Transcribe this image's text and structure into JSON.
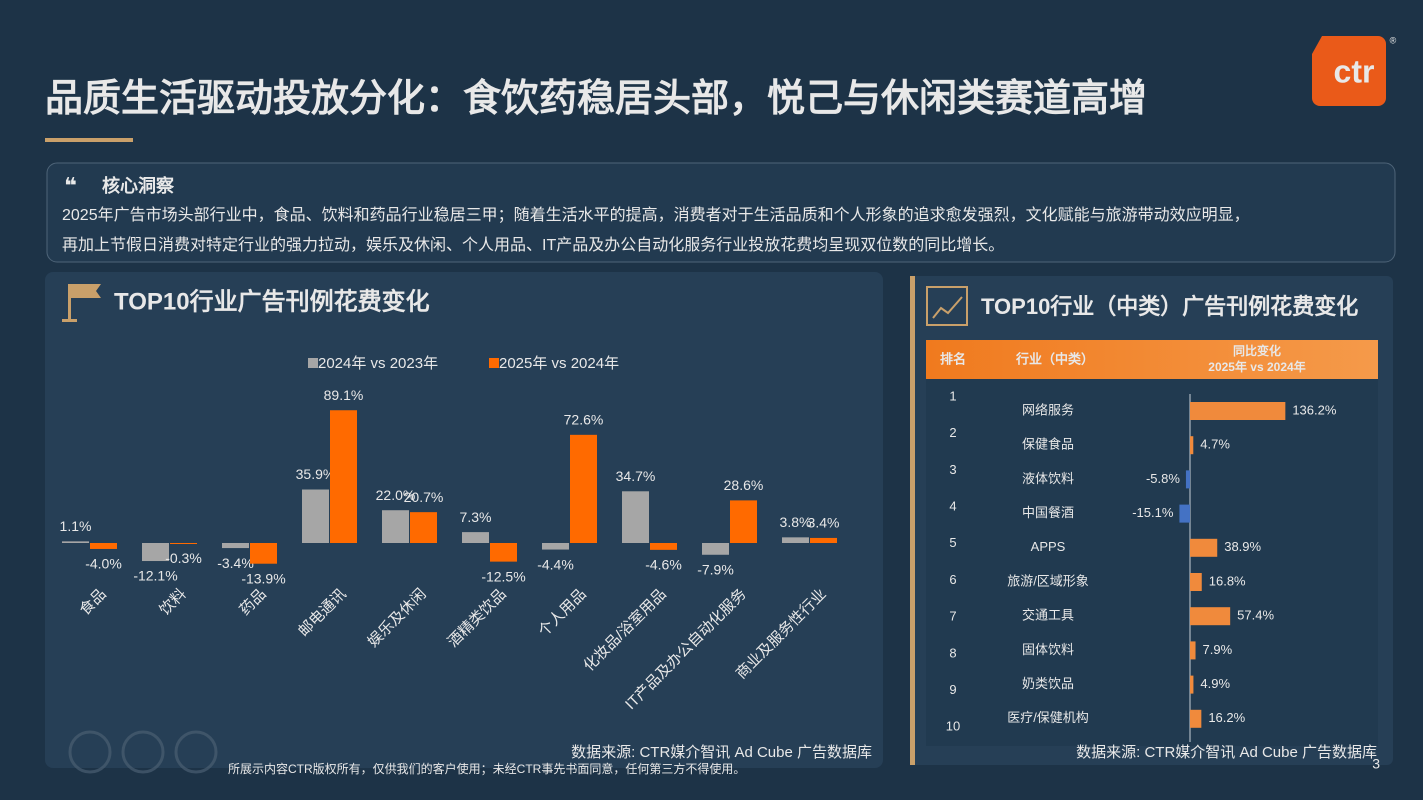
{
  "header": {
    "title": "品质生活驱动投放分化：食饮药稳居头部，悦己与休闲类赛道高增",
    "logo": "ctr",
    "logo_mark": "®"
  },
  "insight": {
    "heading": "核心洞察",
    "text_lines": [
      "2025年广告市场头部行业中，食品、饮料和药品行业稳居三甲；随着生活水平的提高，消费者对于生活品质和个人形象的追求愈发强烈，文化赋能与旅游带动效应明显，",
      "再加上节假日消费对特定行业的强力拉动，娱乐及休闲、个人用品、IT产品及办公自动化服务行业投放花费均呈现双位数的同比增长。"
    ]
  },
  "chart_data": [
    {
      "type": "bar",
      "orientation": "vertical",
      "title": "TOP10行业广告刊例花费变化",
      "categories": [
        "食品",
        "饮料",
        "药品",
        "邮电通讯",
        "娱乐及休闲",
        "酒精类饮品",
        "个人用品",
        "化妆品/浴室用品",
        "IT产品及办公自动化服务",
        "商业及服务性行业"
      ],
      "series": [
        {
          "name": "2024年 vs 2023年",
          "color": "#a6a6a6",
          "values": [
            1.1,
            -12.1,
            -3.4,
            35.9,
            22.0,
            7.3,
            -4.4,
            34.7,
            -7.9,
            3.8
          ],
          "value_labels": [
            "1.1%",
            "-12.1%",
            "-3.4%",
            "35.9%",
            "22.0%",
            "7.3%",
            "-4.4%",
            "34.7%",
            "-7.9%",
            "3.8%"
          ]
        },
        {
          "name": "2025年 vs 2024年",
          "color": "#ff6a00",
          "values": [
            -4.0,
            -0.3,
            -13.9,
            89.1,
            20.7,
            -12.5,
            72.6,
            -4.6,
            28.6,
            3.4
          ],
          "value_labels": [
            "-4.0%",
            "-0.3%",
            "-13.9%",
            "89.1%",
            "20.7%",
            "-12.5%",
            "72.6%",
            "-4.6%",
            "28.6%",
            "3.4%"
          ]
        }
      ],
      "source": "数据来源: CTR媒介智讯 Ad Cube 广告数据库"
    },
    {
      "type": "bar",
      "orientation": "horizontal",
      "title": "TOP10行业（中类）广告刊例花费变化",
      "column_headers": [
        "排名",
        "行业（中类）"
      ],
      "value_header": [
        "同比变化",
        "2025年 vs 2024年"
      ],
      "ranks": [
        1,
        2,
        3,
        4,
        5,
        6,
        7,
        8,
        9,
        10
      ],
      "categories": [
        "网络服务",
        "保健食品",
        "液体饮料",
        "中国餐酒",
        "APPS",
        "旅游/区域形象",
        "交通工具",
        "固体饮料",
        "奶类饮品",
        "医疗/保健机构"
      ],
      "values": [
        136.2,
        4.7,
        -5.8,
        -15.1,
        38.9,
        16.8,
        57.4,
        7.9,
        4.9,
        16.2
      ],
      "value_labels": [
        "136.2%",
        "4.7%",
        "-5.8%",
        "-15.1%",
        "38.9%",
        "16.8%",
        "57.4%",
        "7.9%",
        "4.9%",
        "16.2%"
      ],
      "color": "#f08a3c",
      "negative_color": "#4472c4",
      "source": "数据来源: CTR媒介智讯 Ad Cube 广告数据库"
    }
  ],
  "footer": {
    "copyright": "所展示内容CTR版权所有，仅供我们的客户使用；未经CTR事先书面同意，任何第三方不得使用。",
    "page": "3"
  }
}
